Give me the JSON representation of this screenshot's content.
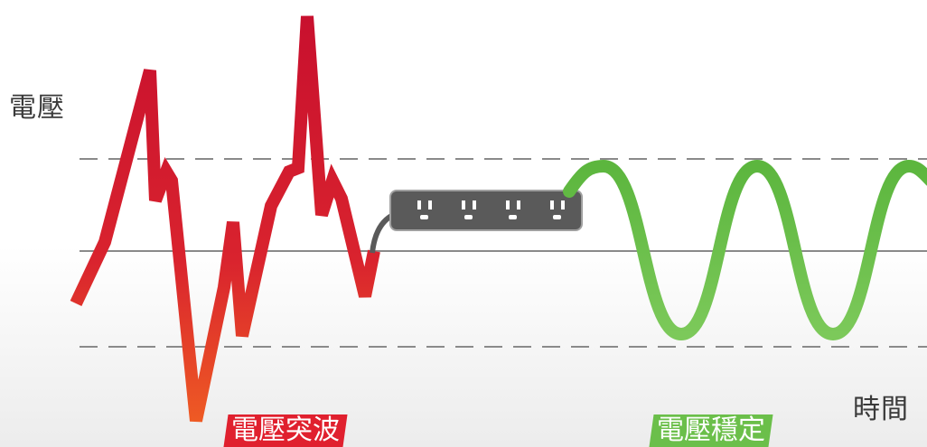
{
  "labels": {
    "y_axis": "電壓",
    "x_axis": "時間"
  },
  "badges": {
    "surge": "電壓突波",
    "stable": "電壓穩定"
  },
  "colors": {
    "surge_red": "#d9232e",
    "surge_orange": "#e8452a",
    "stable_green": "#6bbf4a",
    "power_strip": "#5a5a5a",
    "guide_line": "#8a8a8a"
  },
  "icons": {
    "power_strip": "power-strip-icon"
  }
}
